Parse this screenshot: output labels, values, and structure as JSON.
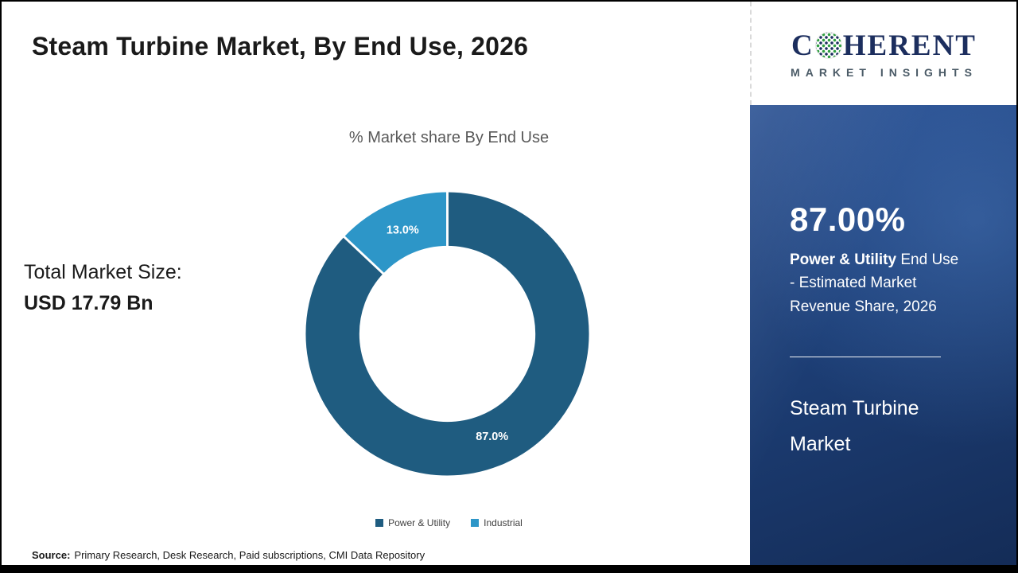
{
  "header": {
    "title": "Steam Turbine Market, By End Use, 2026"
  },
  "logo": {
    "brand_prefix": "C",
    "brand_suffix": "HERENT",
    "subtitle": "MARKET INSIGHTS"
  },
  "chart_data": {
    "type": "pie",
    "donut": true,
    "title": "% Market share By End Use",
    "categories": [
      "Power & Utility",
      "Industrial"
    ],
    "values": [
      87.0,
      13.0
    ],
    "labels": [
      "87.0%",
      "13.0%"
    ],
    "colors": [
      "#1f5c80",
      "#2d96c8"
    ],
    "legend_position": "bottom",
    "start_angle_deg": 0,
    "direction": "clockwise"
  },
  "left_panel": {
    "market_size_label": "Total Market Size:",
    "market_size_value": "USD 17.79 Bn"
  },
  "sidebar": {
    "stat_value": "87.00%",
    "stat_desc_bold": "Power & Utility",
    "stat_desc_rest": " End Use - Estimated Market Revenue Share, 2026",
    "product_name": "Steam Turbine Market",
    "background_color": "#1d3f77"
  },
  "footer": {
    "source_label": "Source:",
    "source_text": "Primary Research, Desk Research, Paid subscriptions, CMI Data Repository"
  }
}
